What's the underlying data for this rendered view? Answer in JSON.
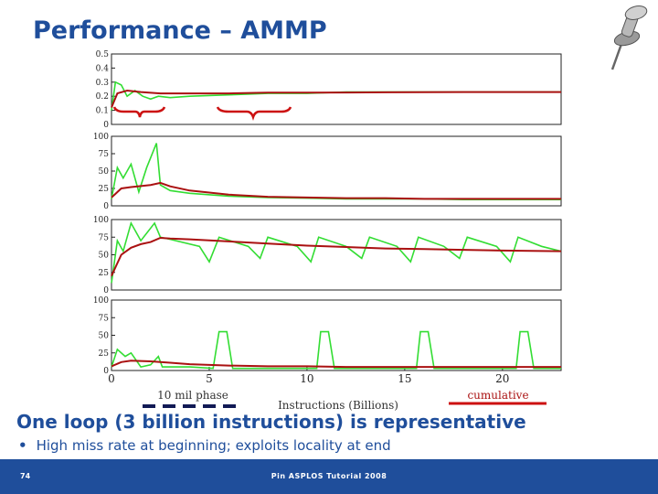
{
  "slide": {
    "title": "Performance – AMMP",
    "headline": "One loop (3 billion instructions) is representative",
    "bullet": "High miss rate at beginning; exploits locality at end",
    "slide_number": "74",
    "footer": "Pin ASPLOS Tutorial 2008"
  },
  "annotations": {
    "phase_label": "10 mil phase",
    "cumulative_label": "cumulative"
  },
  "colors": {
    "title": "#1f4e9b",
    "phase_series": "#33dd33",
    "cumulative_series": "#aa1111",
    "brace": "#cc1111",
    "phase_marker": "#111a55",
    "cumulative_marker": "#cc1111"
  },
  "icons": [
    "pushpin-icon"
  ],
  "chart_data": [
    {
      "type": "line",
      "xlabel": "",
      "ylabel": "",
      "xlim": [
        0,
        23
      ],
      "ylim": [
        0,
        0.5
      ],
      "yticks": [
        0,
        0.1,
        0.2,
        0.3,
        0.4,
        0.5
      ],
      "yticklabels": [
        "0",
        "0.1",
        "0.2",
        "0.3",
        "0.4",
        "0.5"
      ],
      "series": [
        {
          "points": [
            [
              0,
              0.1
            ],
            [
              0.2,
              0.3
            ],
            [
              0.5,
              0.28
            ],
            [
              0.8,
              0.2
            ],
            [
              1.2,
              0.24
            ],
            [
              1.6,
              0.2
            ],
            [
              2.0,
              0.18
            ],
            [
              2.4,
              0.2
            ],
            [
              3.0,
              0.19
            ],
            [
              4,
              0.2
            ],
            [
              6,
              0.21
            ],
            [
              8,
              0.22
            ],
            [
              10,
              0.22
            ],
            [
              12,
              0.23
            ],
            [
              14,
              0.23
            ],
            [
              16,
              0.23
            ],
            [
              18,
              0.23
            ],
            [
              20,
              0.23
            ],
            [
              22,
              0.23
            ],
            [
              23,
              0.23
            ]
          ]
        },
        {
          "points": [
            [
              0,
              0.12
            ],
            [
              0.3,
              0.22
            ],
            [
              0.8,
              0.24
            ],
            [
              1.5,
              0.23
            ],
            [
              2.5,
              0.22
            ],
            [
              4,
              0.22
            ],
            [
              6,
              0.22
            ],
            [
              8,
              0.225
            ],
            [
              10,
              0.225
            ],
            [
              14,
              0.228
            ],
            [
              18,
              0.23
            ],
            [
              23,
              0.23
            ]
          ]
        }
      ]
    },
    {
      "type": "line",
      "xlabel": "",
      "ylabel": "",
      "xlim": [
        0,
        23
      ],
      "ylim": [
        0,
        100
      ],
      "yticks": [
        0,
        25,
        50,
        75,
        100
      ],
      "yticklabels": [
        "0",
        "25",
        "50",
        "75",
        "100"
      ],
      "series": [
        {
          "points": [
            [
              0,
              10
            ],
            [
              0.3,
              55
            ],
            [
              0.6,
              40
            ],
            [
              1,
              60
            ],
            [
              1.4,
              20
            ],
            [
              1.8,
              55
            ],
            [
              2.3,
              90
            ],
            [
              2.5,
              30
            ],
            [
              3,
              22
            ],
            [
              4,
              18
            ],
            [
              6,
              14
            ],
            [
              8,
              12
            ],
            [
              10,
              11
            ],
            [
              12,
              10
            ],
            [
              14,
              10
            ],
            [
              16,
              10
            ],
            [
              18,
              9
            ],
            [
              20,
              9
            ],
            [
              23,
              9
            ]
          ]
        },
        {
          "points": [
            [
              0,
              12
            ],
            [
              0.5,
              25
            ],
            [
              1,
              27
            ],
            [
              2,
              30
            ],
            [
              2.5,
              33
            ],
            [
              3,
              28
            ],
            [
              4,
              22
            ],
            [
              6,
              16
            ],
            [
              8,
              13
            ],
            [
              10,
              12
            ],
            [
              12,
              11
            ],
            [
              14,
              11
            ],
            [
              16,
              10
            ],
            [
              18,
              10
            ],
            [
              20,
              10
            ],
            [
              23,
              10
            ]
          ]
        }
      ]
    },
    {
      "type": "line",
      "xlabel": "",
      "ylabel": "",
      "xlim": [
        0,
        23
      ],
      "ylim": [
        0,
        100
      ],
      "yticks": [
        0,
        25,
        50,
        75,
        100
      ],
      "yticklabels": [
        "0",
        "25",
        "50",
        "75",
        "100"
      ],
      "series": [
        {
          "points": [
            [
              0,
              10
            ],
            [
              0.3,
              70
            ],
            [
              0.6,
              55
            ],
            [
              1,
              95
            ],
            [
              1.5,
              70
            ],
            [
              2.2,
              95
            ],
            [
              2.5,
              75
            ],
            [
              3,
              72
            ],
            [
              4.5,
              62
            ],
            [
              5,
              40
            ],
            [
              5.5,
              75
            ],
            [
              7,
              62
            ],
            [
              7.6,
              45
            ],
            [
              8,
              75
            ],
            [
              9.5,
              62
            ],
            [
              10.2,
              40
            ],
            [
              10.6,
              75
            ],
            [
              12,
              62
            ],
            [
              12.8,
              45
            ],
            [
              13.2,
              75
            ],
            [
              14.6,
              62
            ],
            [
              15.3,
              40
            ],
            [
              15.7,
              75
            ],
            [
              17,
              62
            ],
            [
              17.8,
              45
            ],
            [
              18.2,
              75
            ],
            [
              19.7,
              62
            ],
            [
              20.4,
              40
            ],
            [
              20.8,
              75
            ],
            [
              22,
              62
            ],
            [
              23,
              55
            ]
          ]
        },
        {
          "points": [
            [
              0,
              20
            ],
            [
              0.5,
              50
            ],
            [
              1,
              60
            ],
            [
              1.5,
              65
            ],
            [
              2,
              68
            ],
            [
              2.5,
              74
            ],
            [
              3,
              73
            ],
            [
              4,
              72
            ],
            [
              6,
              69
            ],
            [
              8,
              66
            ],
            [
              10,
              63
            ],
            [
              12,
              61
            ],
            [
              14,
              59
            ],
            [
              16,
              58
            ],
            [
              18,
              57
            ],
            [
              20,
              56
            ],
            [
              23,
              55
            ]
          ]
        }
      ]
    },
    {
      "type": "line",
      "xlabel": "Instructions (Billions)",
      "ylabel": "",
      "xlim": [
        0,
        23
      ],
      "ylim": [
        0,
        100
      ],
      "xticks": [
        0,
        5,
        10,
        15,
        20
      ],
      "xticklabels": [
        "0",
        "5",
        "10",
        "15",
        "20"
      ],
      "yticks": [
        0,
        25,
        50,
        75,
        100
      ],
      "yticklabels": [
        "0",
        "25",
        "50",
        "75",
        "100"
      ],
      "series": [
        {
          "points": [
            [
              0,
              5
            ],
            [
              0.3,
              30
            ],
            [
              0.7,
              20
            ],
            [
              1,
              25
            ],
            [
              1.5,
              5
            ],
            [
              2,
              8
            ],
            [
              2.4,
              20
            ],
            [
              2.6,
              5
            ],
            [
              4,
              5
            ],
            [
              5.2,
              3
            ],
            [
              5.5,
              55
            ],
            [
              5.9,
              55
            ],
            [
              6.2,
              3
            ],
            [
              8,
              3
            ],
            [
              10.5,
              3
            ],
            [
              10.7,
              55
            ],
            [
              11.1,
              55
            ],
            [
              11.4,
              3
            ],
            [
              13,
              3
            ],
            [
              15.6,
              3
            ],
            [
              15.8,
              55
            ],
            [
              16.2,
              55
            ],
            [
              16.5,
              3
            ],
            [
              18,
              3
            ],
            [
              20.7,
              3
            ],
            [
              20.9,
              55
            ],
            [
              21.3,
              55
            ],
            [
              21.6,
              3
            ],
            [
              23,
              3
            ]
          ]
        },
        {
          "points": [
            [
              0,
              6
            ],
            [
              0.5,
              12
            ],
            [
              1,
              14
            ],
            [
              2,
              13
            ],
            [
              3,
              11
            ],
            [
              4,
              9
            ],
            [
              6,
              7
            ],
            [
              8,
              6
            ],
            [
              10,
              6
            ],
            [
              12,
              5
            ],
            [
              14,
              5
            ],
            [
              16,
              5
            ],
            [
              18,
              5
            ],
            [
              20,
              5
            ],
            [
              23,
              5
            ]
          ]
        }
      ]
    }
  ]
}
